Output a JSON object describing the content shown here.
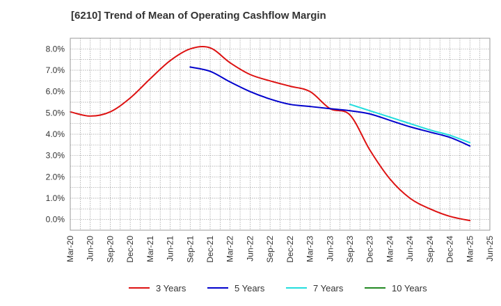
{
  "chart_data": {
    "type": "line",
    "title": "[6210]  Trend of Mean of Operating Cashflow Margin",
    "xlabel": "",
    "ylabel": "",
    "ylim": [
      -0.5,
      8.5
    ],
    "yticks": [
      0.0,
      1.0,
      2.0,
      3.0,
      4.0,
      5.0,
      6.0,
      7.0,
      8.0
    ],
    "ytick_labels": [
      "0.0%",
      "1.0%",
      "2.0%",
      "3.0%",
      "4.0%",
      "5.0%",
      "6.0%",
      "7.0%",
      "8.0%"
    ],
    "categories": [
      "Mar-20",
      "Jun-20",
      "Sep-20",
      "Dec-20",
      "Mar-21",
      "Jun-21",
      "Sep-21",
      "Dec-21",
      "Mar-22",
      "Jun-22",
      "Sep-22",
      "Dec-22",
      "Mar-23",
      "Jun-23",
      "Sep-23",
      "Dec-23",
      "Mar-24",
      "Jun-24",
      "Sep-24",
      "Dec-24",
      "Mar-25",
      "Jun-25"
    ],
    "grid": true,
    "legend_position": "bottom",
    "series": [
      {
        "name": "3 Years",
        "color": "#dd1111",
        "values": [
          5.05,
          4.85,
          5.05,
          5.7,
          6.6,
          7.45,
          8.0,
          8.05,
          7.35,
          6.8,
          6.5,
          6.25,
          6.0,
          5.2,
          4.9,
          3.25,
          1.9,
          1.0,
          0.5,
          0.15,
          -0.05,
          null
        ]
      },
      {
        "name": "5 Years",
        "color": "#0000cc",
        "values": [
          null,
          null,
          null,
          null,
          null,
          null,
          7.15,
          6.95,
          6.45,
          6.0,
          5.65,
          5.4,
          5.3,
          5.2,
          5.1,
          4.95,
          4.65,
          4.35,
          4.1,
          3.85,
          3.45,
          null
        ]
      },
      {
        "name": "7 Years",
        "color": "#22dddd",
        "values": [
          null,
          null,
          null,
          null,
          null,
          null,
          null,
          null,
          null,
          null,
          null,
          null,
          null,
          null,
          5.4,
          5.1,
          4.8,
          4.5,
          4.2,
          3.95,
          3.6,
          null
        ]
      },
      {
        "name": "10 Years",
        "color": "#228822",
        "values": [
          null,
          null,
          null,
          null,
          null,
          null,
          null,
          null,
          null,
          null,
          null,
          null,
          null,
          null,
          null,
          null,
          null,
          null,
          null,
          null,
          null,
          null
        ]
      }
    ]
  }
}
